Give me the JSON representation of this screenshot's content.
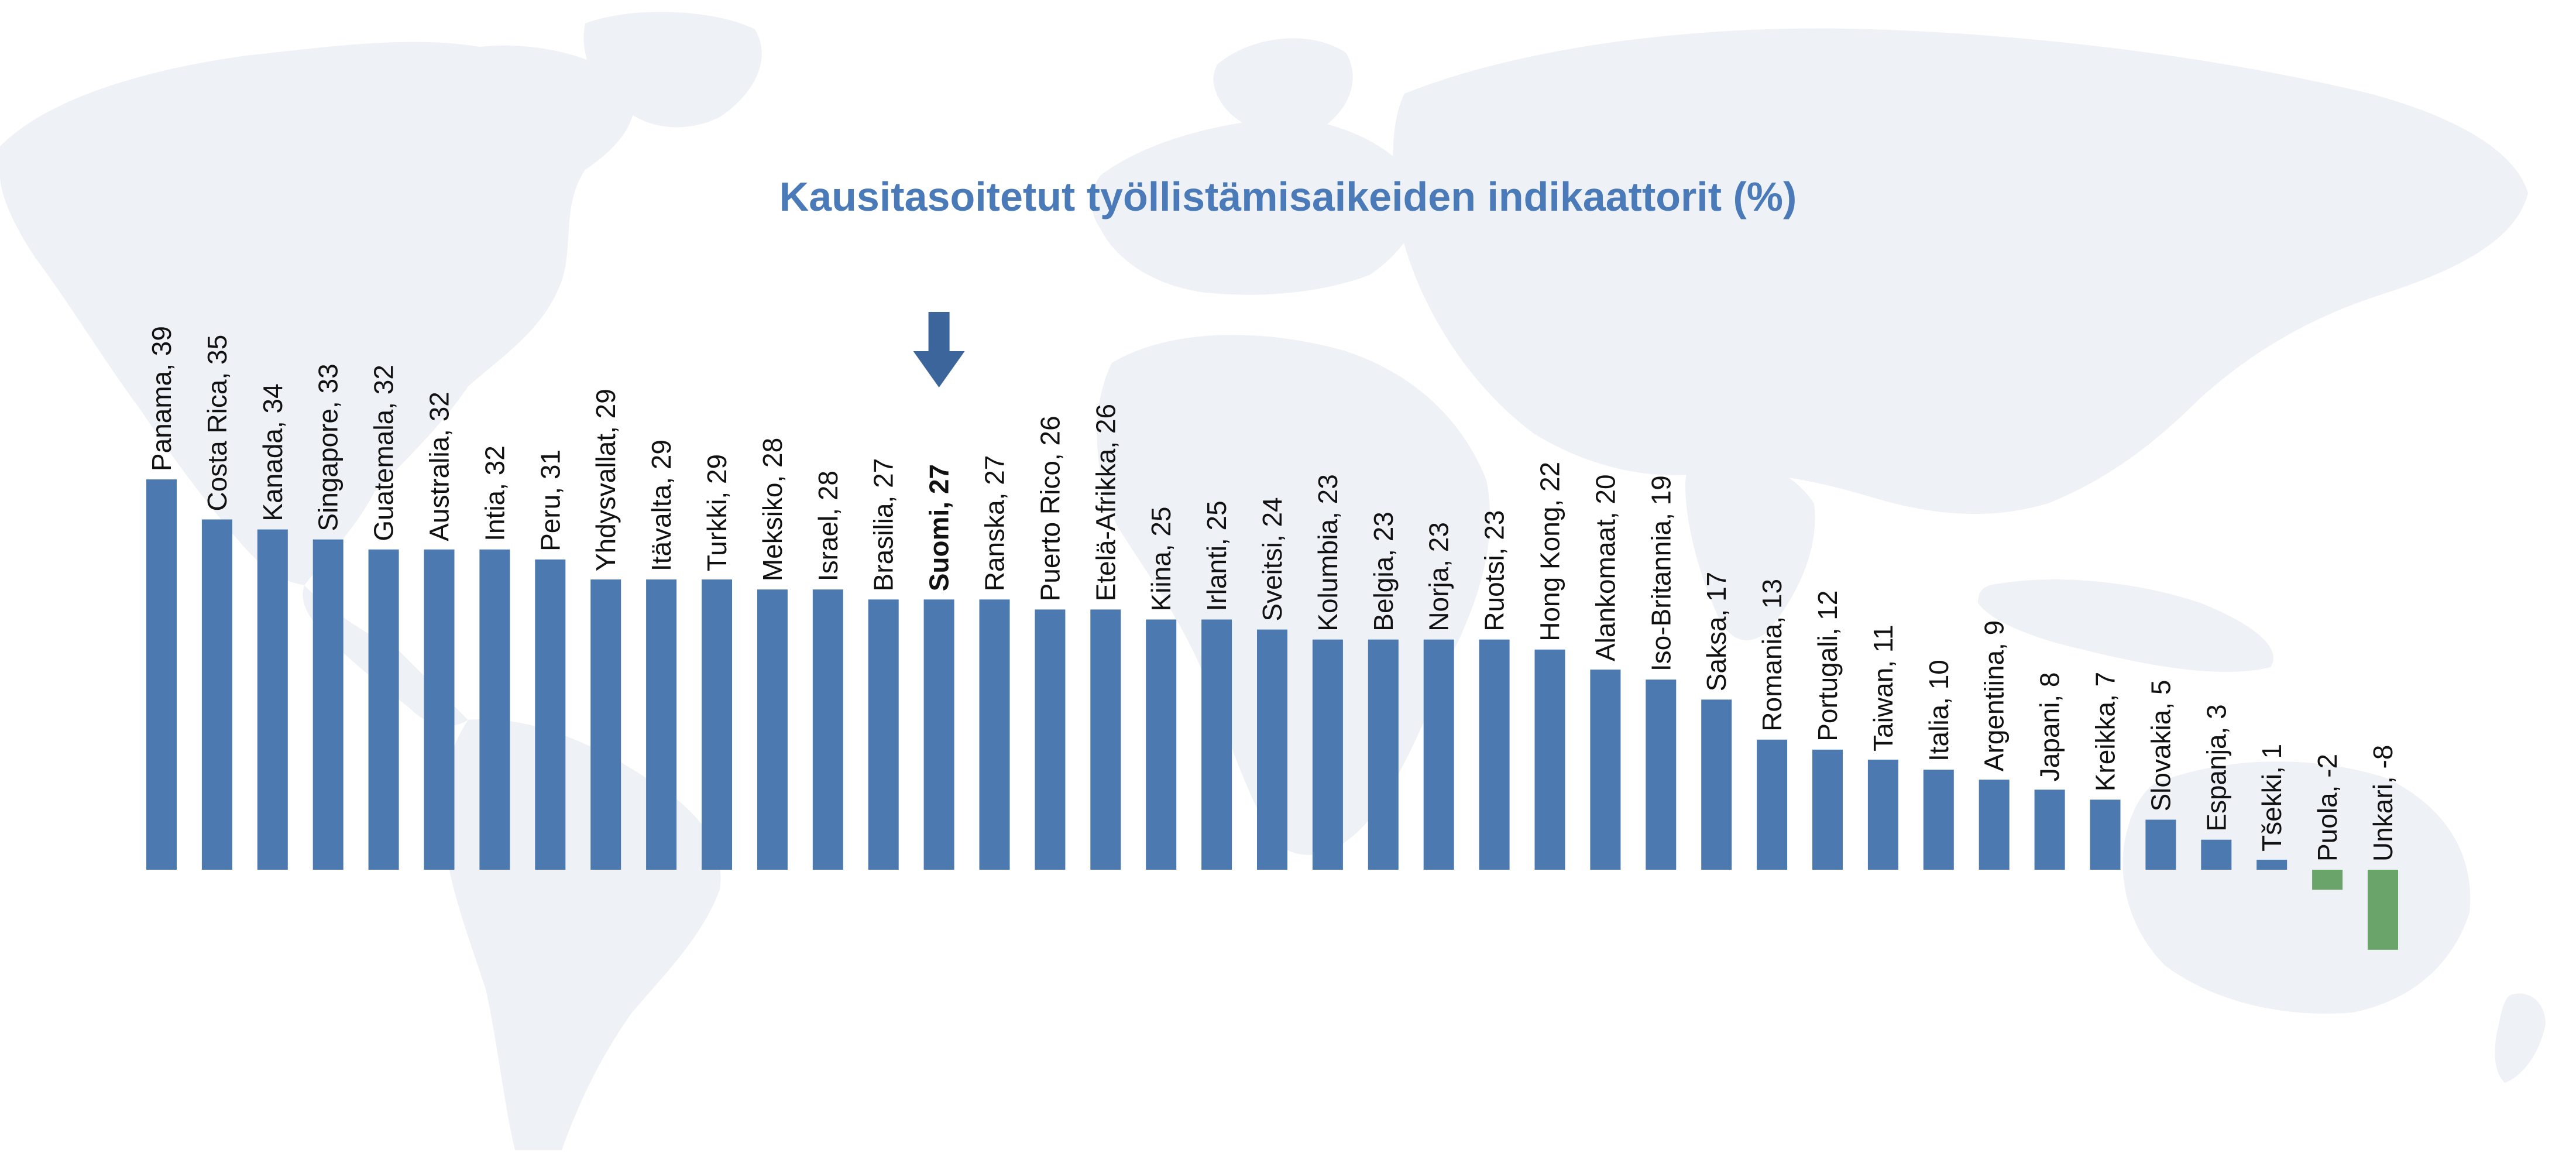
{
  "chart_data": {
    "type": "bar",
    "title": "Kausitasoitetut työllistämisaikeiden indikaattorit (%)",
    "xlabel": "",
    "ylabel": "",
    "ylim": [
      -8,
      39
    ],
    "grid": false,
    "legend": "none",
    "highlighted_category": "Suomi",
    "categories": [
      "Panama",
      "Costa Rica",
      "Kanada",
      "Singapore",
      "Guatemala",
      "Australia",
      "Intia",
      "Peru",
      "Yhdysvallat",
      "Itävalta",
      "Turkki",
      "Meksiko",
      "Israel",
      "Brasilia",
      "Suomi",
      "Ranska",
      "Puerto Rico",
      "Etelä-Afrikka",
      "Kiina",
      "Irlanti",
      "Sveitsi",
      "Kolumbia",
      "Belgia",
      "Norja",
      "Ruotsi",
      "Hong Kong",
      "Alankomaat",
      "Iso-Britannia",
      "Saksa",
      "Romania",
      "Portugali",
      "Taiwan",
      "Italia",
      "Argentiina",
      "Japani",
      "Kreikka",
      "Slovakia",
      "Espanja",
      "Tšekki",
      "Puola",
      "Unkari"
    ],
    "values": [
      39,
      35,
      34,
      33,
      32,
      32,
      32,
      31,
      29,
      29,
      29,
      28,
      28,
      27,
      27,
      27,
      26,
      26,
      25,
      25,
      24,
      23,
      23,
      23,
      23,
      22,
      20,
      19,
      17,
      13,
      12,
      11,
      10,
      9,
      8,
      7,
      5,
      3,
      1,
      -2,
      -8
    ],
    "labels": [
      "Panama, 39",
      "Costa Rica, 35",
      "Kanada, 34",
      "Singapore, 33",
      "Guatemala, 32",
      "Australia, 32",
      "Intia, 32",
      "Peru, 31",
      "Yhdysvallat, 29",
      "Itävalta, 29",
      "Turkki, 29",
      "Meksiko, 28",
      "Israel, 28",
      "Brasilia, 27",
      "Suomi, 27",
      "Ranska, 27",
      "Puerto Rico, 26",
      "Etelä-Afrikka, 26",
      "Kiina, 25",
      "Irlanti, 25",
      "Sveitsi, 24",
      "Kolumbia, 23",
      "Belgia, 23",
      "Norja, 23",
      "Ruotsi, 23",
      "Hong Kong, 22",
      "Alankomaat, 20",
      "Iso-Britannia, 19",
      "Saksa, 17",
      "Romania, 13",
      "Portugali, 12",
      "Taiwan, 11",
      "Italia, 10",
      "Argentiina, 9",
      "Japani, 8",
      "Kreikka, 7",
      "Slovakia, 5",
      "Espanja, 3",
      "Tšekki, 1",
      "Puola, -2",
      "Unkari, -8"
    ],
    "colors": {
      "title": "#4a7ab8",
      "positive_bar": "#4b79b0",
      "negative_bar": "#6aa46a",
      "highlight_arrow": "#3c659c",
      "map_background": "#eef2f7"
    }
  }
}
